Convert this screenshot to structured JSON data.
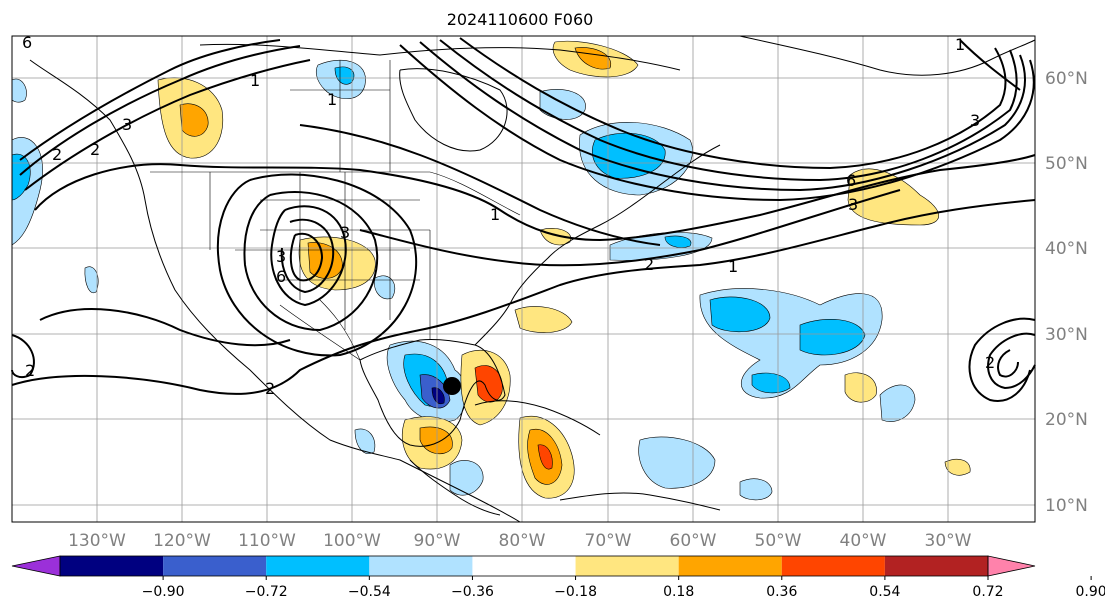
{
  "title": "2024110600 F060",
  "map": {
    "lon_labels": [
      "130°W",
      "120°W",
      "110°W",
      "100°W",
      "90°W",
      "80°W",
      "70°W",
      "60°W",
      "50°W",
      "40°W",
      "30°W"
    ],
    "lat_labels": [
      "60°N",
      "50°N",
      "40°N",
      "30°N",
      "20°N",
      "10°N"
    ],
    "contour_labels": [
      "6",
      "1",
      "3",
      "2",
      "1",
      "3",
      "3",
      "6",
      "1",
      "2",
      "1",
      "2",
      "3",
      "6",
      "3",
      "2",
      "2",
      "1",
      "2"
    ],
    "storm_marker": "storm-center",
    "colors": {
      "coast": "#000000",
      "grid": "#999999",
      "contour": "#000000"
    }
  },
  "colorbar": {
    "colors": [
      "#9b30d9",
      "#000080",
      "#3a5fcd",
      "#00bfff",
      "#b0e2ff",
      "#ffffff",
      "#ffe680",
      "#ffa500",
      "#ff4500",
      "#b22222",
      "#ff82ab"
    ],
    "ticks": [
      "−0.90",
      "−0.72",
      "−0.54",
      "−0.36",
      "−0.18",
      "0.18",
      "0.36",
      "0.54",
      "0.72",
      "0.90"
    ]
  }
}
